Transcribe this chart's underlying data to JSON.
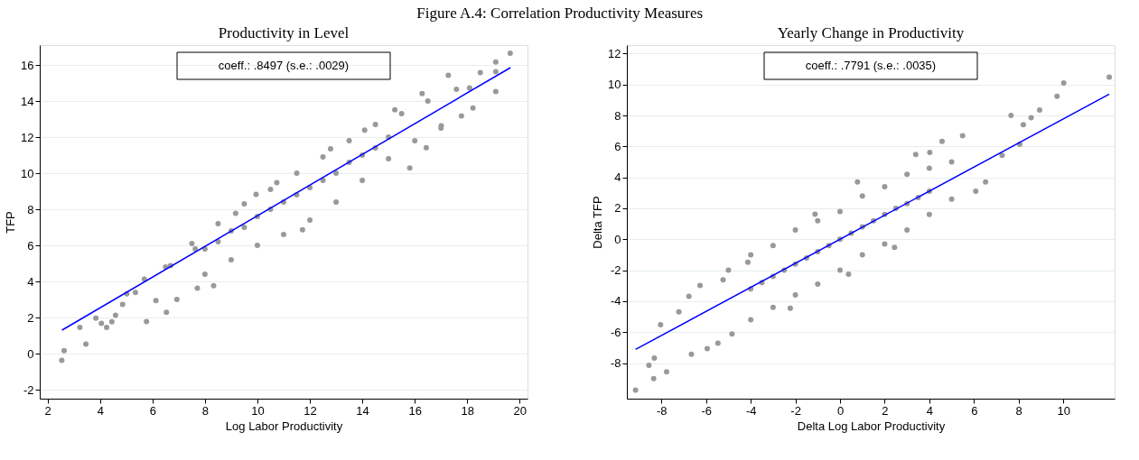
{
  "chart_data": [
    {
      "type": "scatter",
      "title": "Figure A.4: Correlation Productivity Measures",
      "subtitle": "Productivity in Level",
      "xlabel": "Log Labor Productivity",
      "ylabel": "TFP",
      "annotations": [
        "coeff.: .8497 (s.e.: .0029)"
      ],
      "xlim": [
        1.7,
        20.3
      ],
      "ylim": [
        -2.5,
        17.1
      ],
      "xticks": [
        2,
        4,
        6,
        8,
        10,
        12,
        14,
        16,
        18,
        20
      ],
      "yticks": [
        -2,
        0,
        2,
        4,
        6,
        8,
        10,
        12,
        14,
        16
      ],
      "grid": "y",
      "series": [
        {
          "marker": "circle",
          "color": "#999999",
          "x": [
            2.54,
            2.63,
            3.23,
            3.46,
            3.84,
            4.05,
            4.25,
            4.45,
            4.59,
            4.86,
            5.02,
            5.35,
            5.69,
            5.77,
            6.13,
            6.53,
            6.93,
            6.69,
            7.71,
            8.33,
            7.63,
            9.17,
            9.95,
            10.74,
            11.72,
            12.79,
            14.09,
            15.81,
            15.24,
            16.28,
            16.44,
            17.28,
            17.59,
            17.78,
            18.22,
            18.09,
            18.5,
            19.09,
            19.09,
            19.64,
            19.09,
            17.01,
            6.5,
            7.5,
            8.5,
            9.5,
            10.5,
            11.5,
            12.5,
            13.5,
            14.5,
            15.5,
            16.5,
            8,
            9,
            10,
            11,
            12,
            13,
            14,
            15,
            16,
            17,
            8,
            9,
            10,
            11,
            12,
            13,
            14,
            15,
            8.5,
            9.5,
            10.5,
            11.5,
            12.5,
            13.5,
            14.5
          ],
          "values": [
            -0.37,
            0.16,
            1.45,
            0.53,
            1.96,
            1.67,
            1.45,
            1.76,
            2.12,
            2.73,
            3.31,
            3.39,
            4.12,
            1.78,
            2.94,
            2.29,
            3.0,
            4.88,
            3.63,
            3.76,
            5.8,
            7.78,
            8.82,
            9.47,
            6.86,
            11.35,
            12.39,
            10.29,
            13.51,
            14.41,
            11.41,
            15.43,
            14.65,
            13.18,
            13.61,
            14.73,
            15.57,
            16.16,
            14.53,
            16.65,
            15.63,
            12.63,
            4.8,
            6.1,
            7.2,
            8.3,
            9.1,
            10.0,
            10.9,
            11.8,
            12.7,
            13.3,
            14.0,
            4.4,
            5.2,
            6.0,
            6.6,
            7.4,
            8.4,
            9.6,
            10.8,
            11.8,
            12.5,
            5.8,
            6.8,
            7.6,
            8.4,
            9.2,
            10.0,
            11.0,
            12.0,
            6.2,
            7.0,
            8.0,
            8.8,
            9.6,
            10.6,
            11.4
          ]
        },
        {
          "type": "line",
          "color": "#0000ff",
          "x": [
            2.55,
            19.65
          ],
          "values": [
            1.3,
            15.85
          ]
        }
      ]
    },
    {
      "type": "scatter",
      "subtitle": "Yearly Change in Productivity",
      "xlabel": "Delta Log Labor Productivity",
      "ylabel": "Delta TFP",
      "annotations": [
        "coeff.: .7791 (s.e.: .0035)"
      ],
      "xlim": [
        -9.55,
        12.3
      ],
      "ylim": [
        -10.3,
        12.55
      ],
      "xticks": [
        -8,
        -6,
        -4,
        -2,
        0,
        2,
        4,
        6,
        8,
        10
      ],
      "yticks": [
        -8,
        -6,
        -4,
        -2,
        0,
        2,
        4,
        6,
        8,
        10,
        12
      ],
      "grid": "y",
      "series": [
        {
          "marker": "circle",
          "color": "#999999",
          "x": [
            -9.16,
            -8.35,
            -8.56,
            -7.77,
            -8.04,
            -8.32,
            -7.22,
            -6.77,
            -6.66,
            -6.27,
            -5.95,
            -5.47,
            -5.24,
            -4.84,
            -4.13,
            -2.23,
            -1.12,
            0.78,
            0.38,
            2.44,
            3.39,
            4.02,
            4.57,
            5.49,
            6.08,
            6.52,
            7.66,
            7.26,
            8.05,
            8.56,
            8.94,
            9.72,
            10.02,
            12.06,
            8.21,
            -5,
            -4,
            -3,
            -2,
            -1,
            0,
            1,
            2,
            3,
            4,
            5,
            -4,
            -3,
            -2,
            -1,
            0,
            1,
            2,
            3,
            4,
            5,
            -4,
            -3,
            -2,
            -1,
            0,
            1,
            2,
            3,
            4,
            -3.5,
            -2.5,
            -1.5,
            -0.5,
            0.5,
            1.5,
            2.5,
            3.5
          ],
          "values": [
            -9.74,
            -9.0,
            -8.14,
            -8.57,
            -5.52,
            -7.67,
            -4.69,
            -3.69,
            -7.43,
            -2.98,
            -7.07,
            -6.71,
            -2.62,
            -6.12,
            -1.48,
            -4.45,
            1.62,
            3.71,
            -2.26,
            -0.52,
            5.48,
            5.62,
            6.33,
            6.69,
            3.1,
            3.71,
            8.0,
            5.43,
            6.14,
            7.86,
            8.36,
            9.24,
            10.1,
            10.48,
            7.4,
            -2.0,
            -1.0,
            -0.4,
            0.6,
            1.2,
            1.8,
            2.8,
            3.4,
            4.2,
            4.6,
            5.0,
            -5.2,
            -4.4,
            -3.6,
            -2.9,
            -2.0,
            -1.0,
            -0.3,
            0.6,
            1.6,
            2.6,
            -3.2,
            -2.4,
            -1.6,
            -0.8,
            0,
            0.8,
            1.6,
            2.3,
            3.1,
            -2.8,
            -2.0,
            -1.2,
            -0.4,
            0.4,
            1.2,
            2.0,
            2.7
          ]
        },
        {
          "type": "line",
          "color": "#0000ff",
          "x": [
            -9.16,
            12.06
          ],
          "values": [
            -7.12,
            9.38
          ]
        }
      ]
    }
  ]
}
